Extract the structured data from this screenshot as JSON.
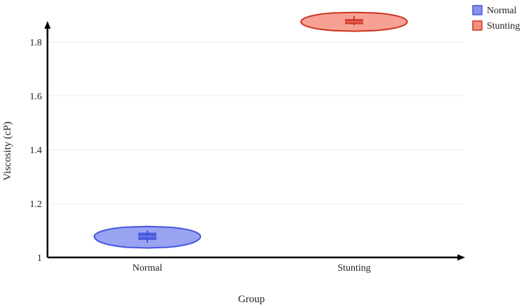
{
  "chart_data": {
    "type": "violin",
    "xlabel": "Group",
    "ylabel": "Viscosity (cP)",
    "categories": [
      "Normal",
      "Stunting"
    ],
    "ylim": [
      1,
      1.9
    ],
    "yticks": [
      1,
      1.2,
      1.4,
      1.6,
      1.8
    ],
    "ytick_labels": [
      "1",
      "1.2",
      "1.4",
      "1.6",
      "1.8"
    ],
    "grid": true,
    "legend_position": "top-right",
    "series": [
      {
        "name": "Normal",
        "color": "#4455dd",
        "fill": "#8893ee",
        "min": 1.035,
        "max": 1.115,
        "q1": 1.065,
        "median": 1.078,
        "q3": 1.092,
        "whisker_low": 1.055,
        "whisker_high": 1.1
      },
      {
        "name": "Stunting",
        "color": "#cc3322",
        "fill": "#f59080",
        "min": 1.84,
        "max": 1.91,
        "q1": 1.866,
        "median": 1.875,
        "q3": 1.885,
        "whisker_low": 1.862,
        "whisker_high": 1.897
      }
    ]
  }
}
